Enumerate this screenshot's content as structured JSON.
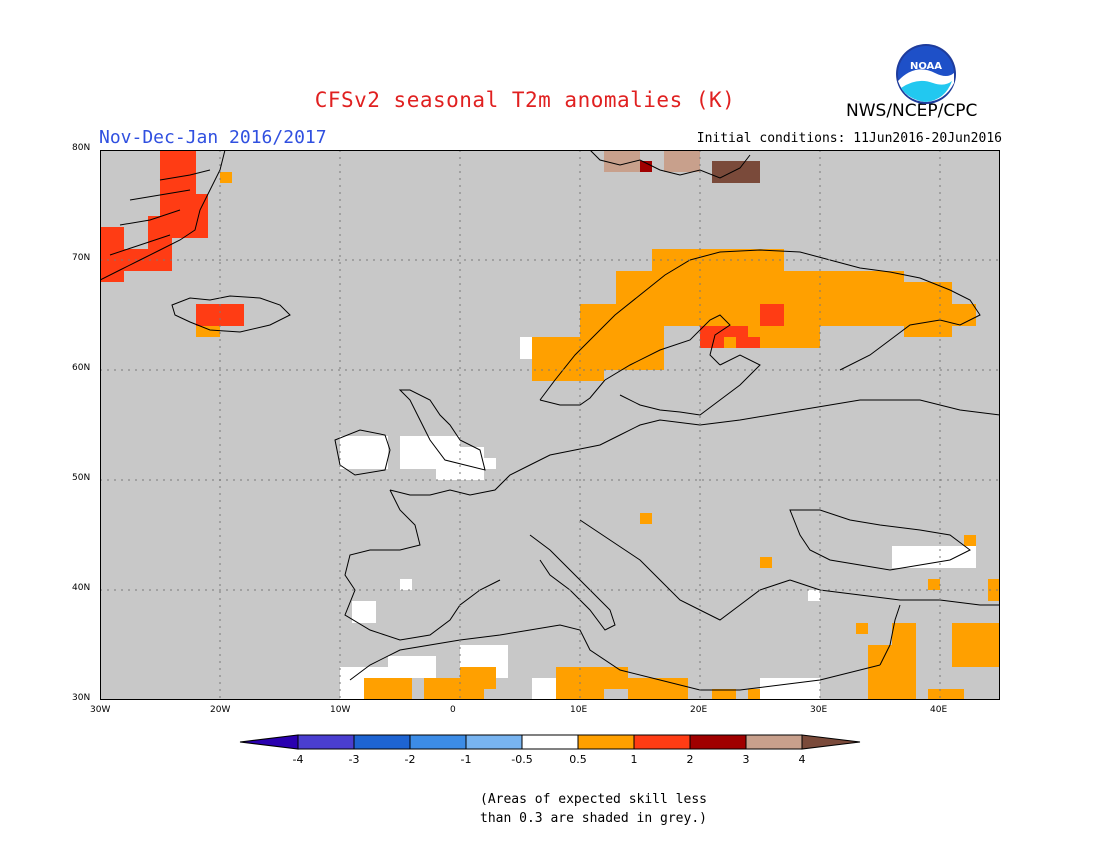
{
  "header": {
    "title": "CFSv2 seasonal T2m anomalies (K)",
    "agency": "NWS/NCEP/CPC",
    "period": "Nov-Dec-Jan 2016/2017",
    "initial_conditions": "Initial conditions: 11Jun2016-20Jun2016"
  },
  "logo": {
    "text": "NOAA",
    "icon": "noaa-logo-icon"
  },
  "map": {
    "projection": "cylindrical",
    "lon_range": [
      -30,
      45
    ],
    "lat_range": [
      30,
      80
    ],
    "background_color": "#c8c8c8",
    "lat_labels": [
      "30N",
      "40N",
      "50N",
      "60N",
      "70N",
      "80N"
    ],
    "lon_labels": [
      "30W",
      "20W",
      "10W",
      "0",
      "10E",
      "20E",
      "30E",
      "40E"
    ],
    "lat_values": [
      30,
      40,
      50,
      60,
      70,
      80
    ],
    "lon_values": [
      -30,
      -20,
      -10,
      0,
      10,
      20,
      30,
      40
    ],
    "anomaly_regions": [
      {
        "name": "Greenland east coast",
        "class": "1 to 2",
        "color": "#ff3c14",
        "cells": [
          [
            -30,
            68,
            -28,
            73
          ],
          [
            -28,
            69,
            -24,
            71
          ],
          [
            -26,
            70,
            -24,
            74
          ],
          [
            -25,
            74,
            -22,
            80
          ],
          [
            -24,
            72,
            -21,
            76
          ]
        ]
      },
      {
        "name": "Greenland fringe",
        "class": "0.5 to 1",
        "color": "#ffa000",
        "cells": [
          [
            -20,
            77,
            -19,
            78
          ]
        ]
      },
      {
        "name": "Iceland",
        "class": "1 to 2",
        "color": "#ff3c14",
        "cells": [
          [
            -22,
            64,
            -18,
            66
          ]
        ]
      },
      {
        "name": "Iceland fringe",
        "class": "0.5 to 1",
        "color": "#ffa000",
        "cells": [
          [
            -22,
            63,
            -20,
            64
          ]
        ]
      },
      {
        "name": "Scandinavia",
        "class": "0.5 to 1",
        "color": "#ffa000",
        "cells": [
          [
            6,
            59,
            12,
            63
          ],
          [
            10,
            60,
            17,
            66
          ],
          [
            13,
            64,
            20,
            69
          ],
          [
            16,
            66,
            27,
            71
          ],
          [
            20,
            62,
            30,
            68
          ],
          [
            27,
            64,
            37,
            69
          ],
          [
            37,
            63,
            41,
            68
          ],
          [
            41,
            64,
            43,
            66
          ]
        ]
      },
      {
        "name": "Finland core",
        "class": "1 to 2",
        "color": "#ff3c14",
        "cells": [
          [
            20,
            62,
            22,
            64
          ],
          [
            22,
            63,
            24,
            64
          ],
          [
            25,
            64,
            27,
            66
          ],
          [
            23,
            62,
            25,
            63
          ]
        ]
      },
      {
        "name": "Svalbard / Franz Josef",
        "class": "3 to 4",
        "color": "#c8a08c",
        "cells": [
          [
            12,
            78,
            15,
            80
          ],
          [
            17,
            78,
            20,
            80
          ]
        ]
      },
      {
        "name": "Svalbard dark",
        "class": "above 4",
        "color": "#7a4a3a",
        "cells": [
          [
            21,
            77,
            25,
            79
          ]
        ]
      },
      {
        "name": "Svalbard red",
        "class": "2 to 3",
        "color": "#a00000",
        "cells": [
          [
            15,
            78,
            16,
            79
          ]
        ]
      },
      {
        "name": "Iberia / Morocco",
        "class": "0.5 to 1",
        "color": "#ffa000",
        "cells": [
          [
            -8,
            30,
            -4,
            32
          ],
          [
            -3,
            30,
            2,
            32
          ],
          [
            0,
            31,
            3,
            33
          ],
          [
            8,
            30,
            12,
            33
          ],
          [
            10,
            31,
            14,
            33
          ],
          [
            14,
            30,
            19,
            32
          ],
          [
            21,
            30,
            23,
            31
          ],
          [
            24,
            30,
            25,
            31
          ]
        ]
      },
      {
        "name": "Levant / Middle East",
        "class": "0.5 to 1",
        "color": "#ffa000",
        "cells": [
          [
            34,
            30,
            38,
            35
          ],
          [
            36,
            32,
            38,
            37
          ],
          [
            41,
            33,
            45,
            37
          ],
          [
            39,
            30,
            42,
            31
          ]
        ]
      },
      {
        "name": "scattered",
        "class": "0.5 to 1",
        "color": "#ffa000",
        "cells": [
          [
            15,
            46,
            16,
            47
          ],
          [
            25,
            42,
            26,
            43
          ],
          [
            33,
            36,
            34,
            37
          ],
          [
            39,
            40,
            40,
            41
          ],
          [
            42,
            44,
            43,
            45
          ],
          [
            44,
            39,
            45,
            41
          ]
        ]
      }
    ],
    "near_normal_regions": [
      {
        "name": "UK / Ireland",
        "class": "-0.5 to 0.5",
        "color": "#ffffff",
        "cells": [
          [
            -10,
            51,
            -6,
            54
          ],
          [
            -5,
            51,
            0,
            54
          ],
          [
            -2,
            50,
            2,
            53
          ],
          [
            0,
            51,
            3,
            52
          ]
        ]
      },
      {
        "name": "Iberia white",
        "class": "-0.5 to 0.5",
        "color": "#ffffff",
        "cells": [
          [
            -10,
            30,
            -6,
            33
          ],
          [
            -6,
            32,
            -2,
            34
          ],
          [
            0,
            32,
            4,
            35
          ],
          [
            6,
            30,
            8,
            32
          ],
          [
            -9,
            37,
            -7,
            39
          ],
          [
            -5,
            40,
            -4,
            41
          ]
        ]
      },
      {
        "name": "Norway coast white",
        "class": "-0.5 to 0.5",
        "color": "#ffffff",
        "cells": [
          [
            5,
            61,
            7,
            63
          ],
          [
            8,
            62,
            9,
            63
          ]
        ]
      },
      {
        "name": "Turkey / Black Sea white",
        "class": "-0.5 to 0.5",
        "color": "#ffffff",
        "cells": [
          [
            36,
            42,
            43,
            44
          ],
          [
            25,
            30,
            30,
            32
          ],
          [
            29,
            39,
            30,
            40
          ]
        ]
      }
    ]
  },
  "colorbar": {
    "labels": [
      "-4",
      "-3",
      "-2",
      "-1",
      "-0.5",
      "0.5",
      "1",
      "2",
      "3",
      "4"
    ],
    "colors": [
      "#2a00b0",
      "#4a3ed0",
      "#1e64d2",
      "#3c8ce6",
      "#78b4f0",
      "#ffffff",
      "#ffa000",
      "#ff3c14",
      "#a00000",
      "#c8a08c",
      "#7a4a3a"
    ]
  },
  "note": {
    "line1": "(Areas of expected skill less",
    "line2": "than 0.3 are shaded in grey.)"
  }
}
